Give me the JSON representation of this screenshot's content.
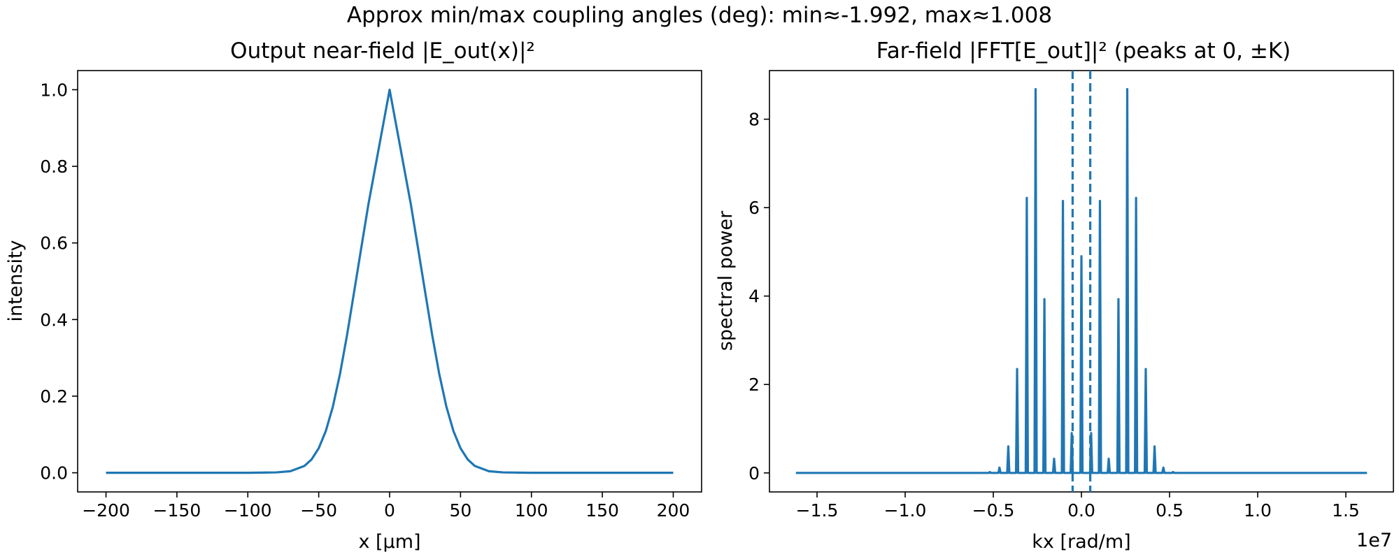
{
  "suptitle": "Approx min/max coupling angles (deg): min≈-1.992, max≈1.008",
  "colors": {
    "line": "#1f77b4",
    "axis": "#000000",
    "background": "#ffffff"
  },
  "chart_data": [
    {
      "type": "line",
      "title": "Output near-field |E_out(x)|²",
      "xlabel": "x [µm]",
      "ylabel": "intensity",
      "xlim": [
        -220,
        220
      ],
      "ylim": [
        -0.05,
        1.05
      ],
      "xticks": [
        -200,
        -150,
        -100,
        -50,
        0,
        50,
        100,
        150,
        200
      ],
      "xtick_labels": [
        "−200",
        "−150",
        "−100",
        "−50",
        "0",
        "50",
        "100",
        "150",
        "200"
      ],
      "yticks": [
        0.0,
        0.2,
        0.4,
        0.6,
        0.8,
        1.0
      ],
      "ytick_labels": [
        "0.0",
        "0.2",
        "0.4",
        "0.6",
        "0.8",
        "1.0"
      ],
      "grid": false,
      "series": [
        {
          "x": [
            -200,
            -100,
            -80,
            -70,
            -60,
            -55,
            -50,
            -45,
            -40,
            -35,
            -30,
            -25,
            -20,
            -15,
            -10,
            -5,
            0,
            5,
            10,
            15,
            20,
            25,
            30,
            35,
            40,
            45,
            50,
            55,
            60,
            70,
            80,
            100,
            200
          ],
          "y": [
            0.0,
            0.0,
            0.001,
            0.004,
            0.018,
            0.035,
            0.064,
            0.109,
            0.173,
            0.258,
            0.36,
            0.473,
            0.587,
            0.7,
            0.8,
            0.9,
            1.0,
            0.9,
            0.8,
            0.7,
            0.587,
            0.473,
            0.36,
            0.258,
            0.173,
            0.109,
            0.064,
            0.035,
            0.018,
            0.004,
            0.001,
            0.0,
            0.0
          ]
        }
      ]
    },
    {
      "type": "line",
      "title": "Far-field |FFT[E_out]|² (peaks at 0, ±K)",
      "xlabel": "kx [rad/m]",
      "ylabel": "spectral power",
      "offset_label": "1e7",
      "xlim": [
        -1.77,
        1.77
      ],
      "ylim": [
        -0.43,
        9.1
      ],
      "xticks": [
        -1.5,
        -1.0,
        -0.5,
        0.0,
        0.5,
        1.0,
        1.5
      ],
      "xtick_labels": [
        "−1.5",
        "−1.0",
        "−0.5",
        "0.0",
        "0.5",
        "1.0",
        "1.5"
      ],
      "yticks": [
        0,
        2,
        4,
        6,
        8
      ],
      "ytick_labels": [
        "0",
        "2",
        "4",
        "6",
        "8"
      ],
      "grid": false,
      "x_range": [
        -1.62,
        1.62
      ],
      "peaks": [
        {
          "x": -0.52,
          "y": 0.02
        },
        {
          "x": -0.465,
          "y": 0.12
        },
        {
          "x": -0.415,
          "y": 0.6
        },
        {
          "x": -0.365,
          "y": 2.35
        },
        {
          "x": -0.31,
          "y": 6.22
        },
        {
          "x": -0.26,
          "y": 8.68
        },
        {
          "x": -0.21,
          "y": 3.93
        },
        {
          "x": -0.155,
          "y": 0.32
        },
        {
          "x": -0.105,
          "y": 6.15
        },
        {
          "x": -0.055,
          "y": 0.9
        },
        {
          "x": 0.0,
          "y": 4.9
        },
        {
          "x": 0.055,
          "y": 0.9
        },
        {
          "x": 0.105,
          "y": 6.15
        },
        {
          "x": 0.155,
          "y": 0.32
        },
        {
          "x": 0.21,
          "y": 3.93
        },
        {
          "x": 0.26,
          "y": 8.68
        },
        {
          "x": 0.31,
          "y": 6.22
        },
        {
          "x": 0.365,
          "y": 2.35
        },
        {
          "x": 0.415,
          "y": 0.6
        },
        {
          "x": 0.465,
          "y": 0.12
        },
        {
          "x": 0.52,
          "y": 0.02
        }
      ],
      "vlines": [
        -0.05,
        0.05
      ],
      "vline_style": "dashed"
    }
  ]
}
